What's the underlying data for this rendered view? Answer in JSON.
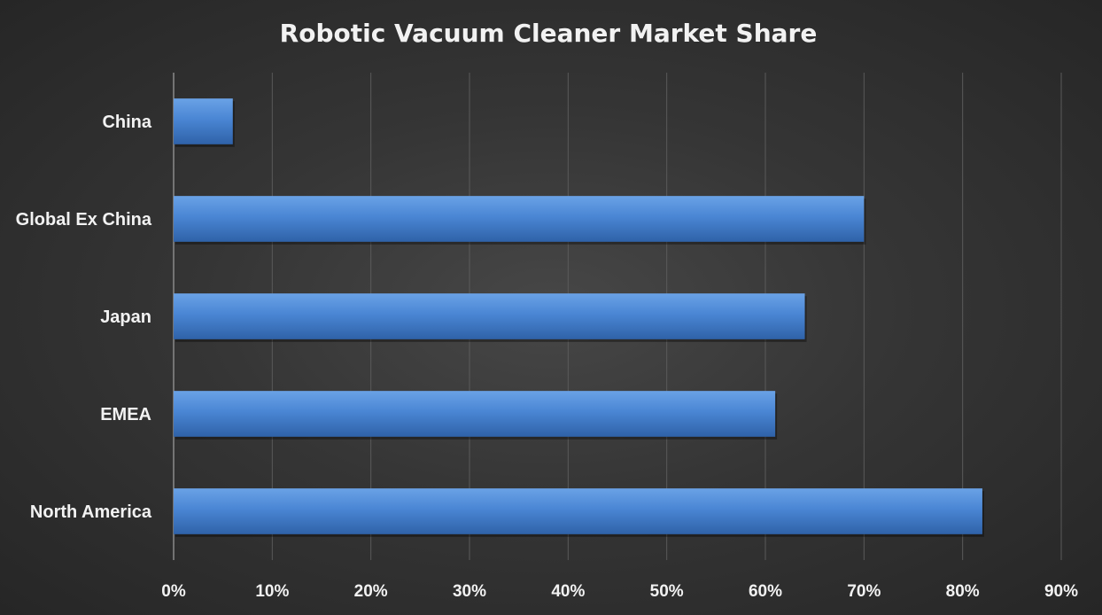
{
  "chart_data": {
    "type": "bar",
    "orientation": "horizontal",
    "title": "Robotic Vacuum Cleaner Market Share",
    "categories": [
      "China",
      "Global Ex China",
      "Japan",
      "EMEA",
      "North America"
    ],
    "values": [
      6,
      70,
      64,
      61,
      82
    ],
    "xlim": [
      0,
      90
    ],
    "x_tick_values": [
      0,
      10,
      20,
      30,
      40,
      50,
      60,
      70,
      80,
      90
    ],
    "x_ticks": [
      "0%",
      "10%",
      "20%",
      "30%",
      "40%",
      "50%",
      "60%",
      "70%",
      "80%",
      "90%"
    ],
    "xlabel": "",
    "ylabel": "",
    "grid": true,
    "legend": "none",
    "colors": {
      "bar": "#4a86d4",
      "bar_light": "#6aa2e6",
      "bar_dark": "#2f62a8",
      "text": "#f2f2f2",
      "grid": "#5a5a5a"
    }
  }
}
